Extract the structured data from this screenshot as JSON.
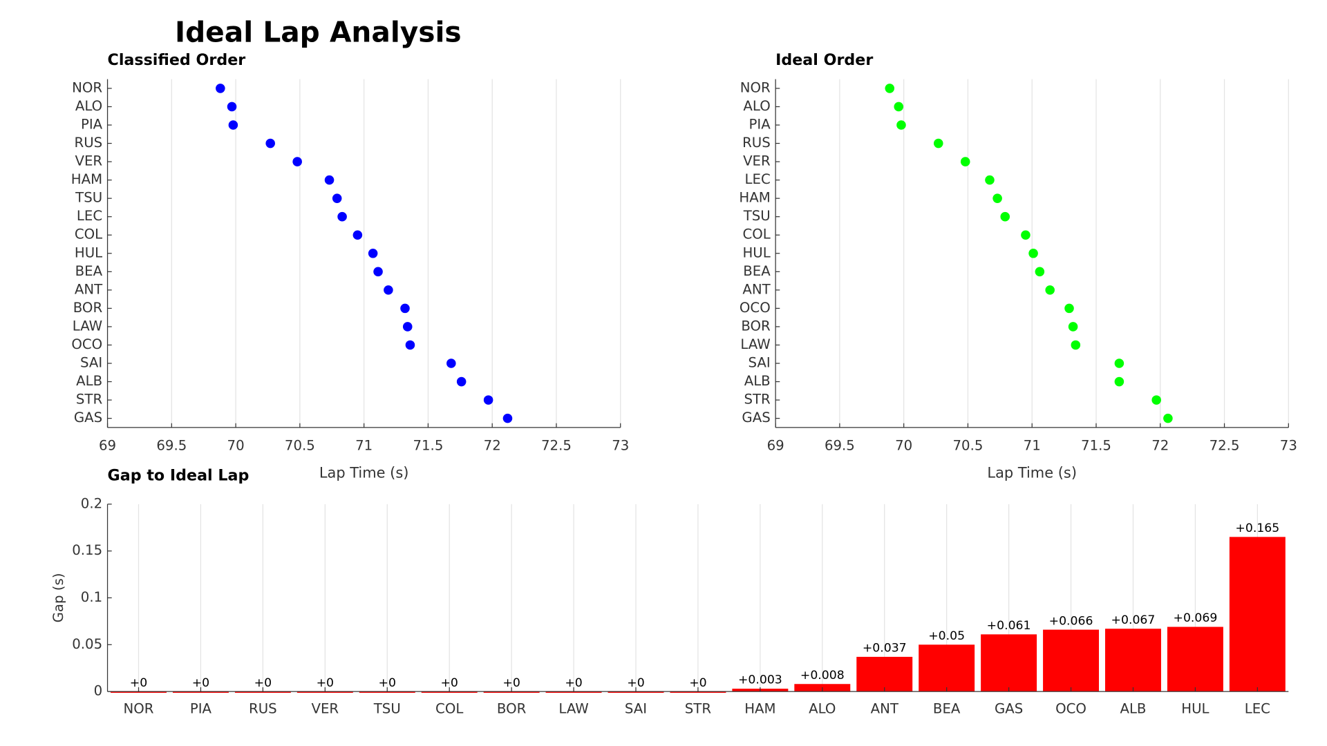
{
  "title": "Ideal Lap Analysis",
  "chart_data": [
    {
      "type": "dot",
      "title": "Classified Order",
      "xlabel": "Lap Time (s)",
      "color": "#0000ff",
      "grid": true,
      "categories": [
        "NOR",
        "ALO",
        "PIA",
        "RUS",
        "VER",
        "HAM",
        "TSU",
        "LEC",
        "COL",
        "HUL",
        "BEA",
        "ANT",
        "BOR",
        "LAW",
        "OCO",
        "SAI",
        "ALB",
        "STR",
        "GAS"
      ],
      "values": [
        69.88,
        69.97,
        69.98,
        70.27,
        70.48,
        70.73,
        70.79,
        70.83,
        70.95,
        71.07,
        71.11,
        71.19,
        71.32,
        71.34,
        71.36,
        71.68,
        71.76,
        71.97,
        72.12
      ],
      "xlim": [
        69,
        73
      ],
      "xticks": [
        69,
        69.5,
        70,
        70.5,
        71,
        71.5,
        72,
        72.5,
        73
      ]
    },
    {
      "type": "dot",
      "title": "Ideal Order",
      "xlabel": "Lap Time (s)",
      "color": "#00ff00",
      "grid": true,
      "categories": [
        "NOR",
        "ALO",
        "PIA",
        "RUS",
        "VER",
        "LEC",
        "HAM",
        "TSU",
        "COL",
        "HUL",
        "BEA",
        "ANT",
        "OCO",
        "BOR",
        "LAW",
        "SAI",
        "ALB",
        "STR",
        "GAS"
      ],
      "values": [
        69.89,
        69.96,
        69.98,
        70.27,
        70.48,
        70.67,
        70.73,
        70.79,
        70.95,
        71.01,
        71.06,
        71.14,
        71.29,
        71.32,
        71.34,
        71.68,
        71.68,
        71.97,
        72.06
      ],
      "xlim": [
        69,
        73
      ],
      "xticks": [
        69,
        69.5,
        70,
        70.5,
        71,
        71.5,
        72,
        72.5,
        73
      ]
    },
    {
      "type": "bar",
      "title": "Gap to Ideal Lap",
      "ylabel": "Gap (s)",
      "color": "#ff0000",
      "grid": true,
      "categories": [
        "NOR",
        "PIA",
        "RUS",
        "VER",
        "TSU",
        "COL",
        "BOR",
        "LAW",
        "SAI",
        "STR",
        "HAM",
        "ALO",
        "ANT",
        "BEA",
        "GAS",
        "OCO",
        "ALB",
        "HUL",
        "LEC"
      ],
      "values": [
        0,
        0,
        0,
        0,
        0,
        0,
        0,
        0,
        0,
        0,
        0.003,
        0.008,
        0.037,
        0.05,
        0.061,
        0.066,
        0.067,
        0.069,
        0.165
      ],
      "value_labels": [
        "+0",
        "+0",
        "+0",
        "+0",
        "+0",
        "+0",
        "+0",
        "+0",
        "+0",
        "+0",
        "+0.003",
        "+0.008",
        "+0.037",
        "+0.05",
        "+0.061",
        "+0.066",
        "+0.067",
        "+0.069",
        "+0.165"
      ],
      "ylim": [
        0,
        0.2
      ],
      "yticks": [
        0,
        0.05,
        0.1,
        0.15,
        0.2
      ]
    }
  ]
}
